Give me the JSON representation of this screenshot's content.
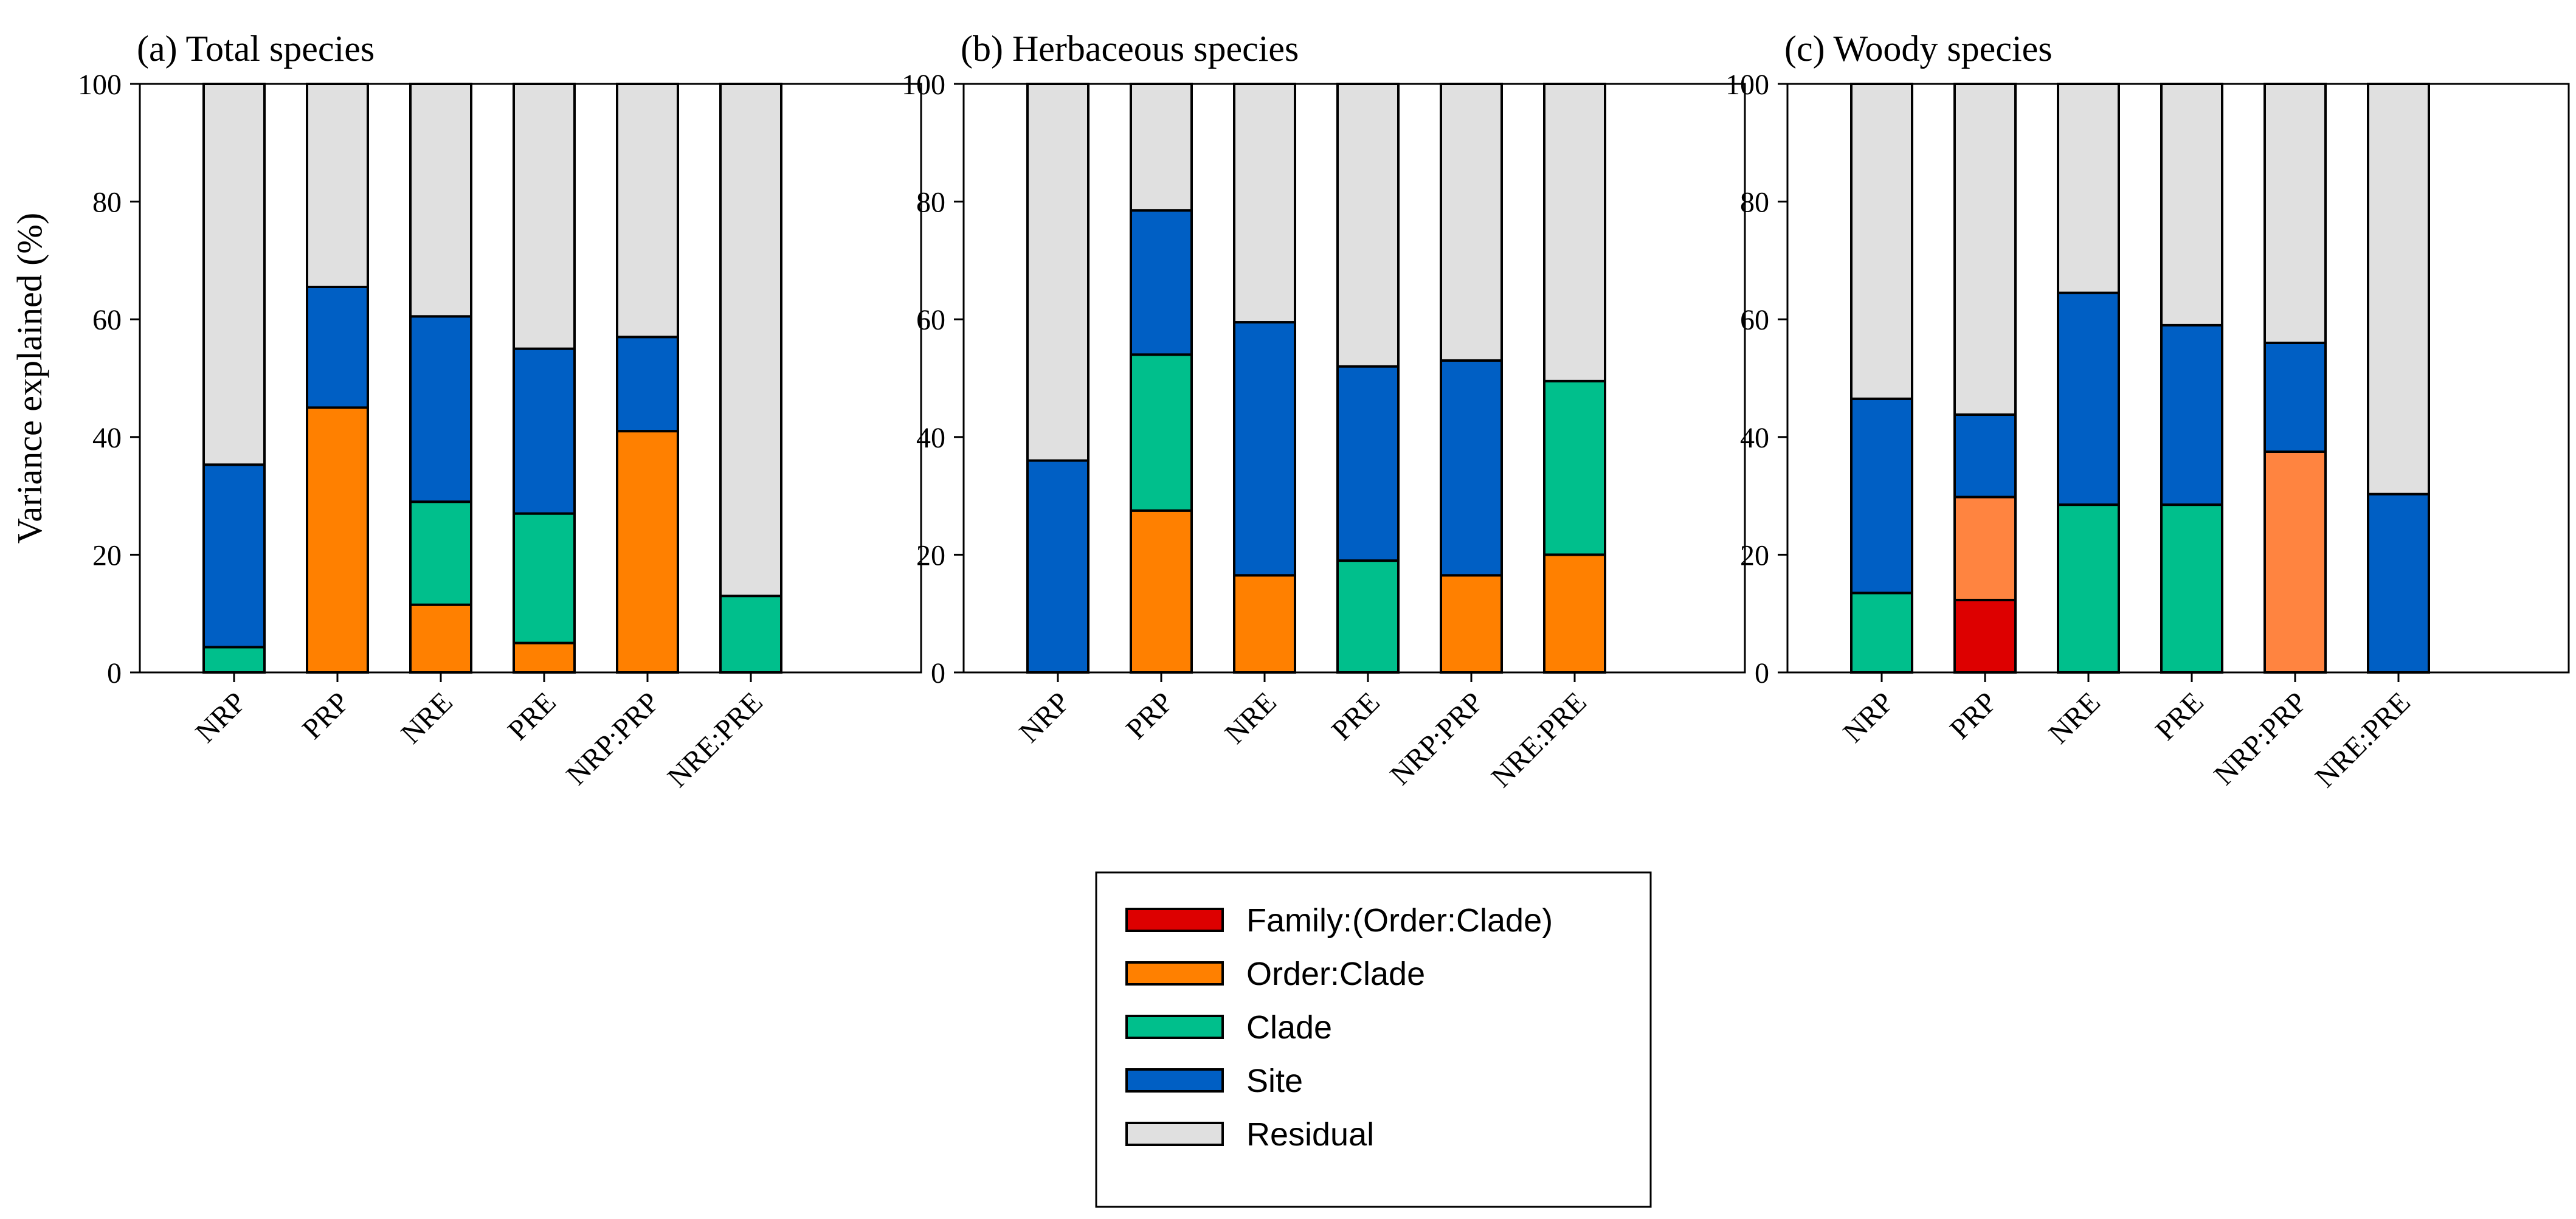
{
  "chart_data": [
    {
      "type": "bar",
      "stacked": true,
      "title": "(a) Total species",
      "xlabel": "",
      "ylabel": "Variance explained (%)",
      "ylim": [
        0,
        100
      ],
      "yticks": [
        0,
        20,
        40,
        60,
        80,
        100
      ],
      "categories": [
        "NRP",
        "PRP",
        "NRE",
        "PRE",
        "NRP:PRP",
        "NRE:PRE"
      ],
      "series": [
        {
          "name": "Family:(Order:Clade)",
          "values": [
            0,
            0,
            0,
            0,
            0,
            0
          ]
        },
        {
          "name": "Order:Clade",
          "values": [
            0,
            45,
            11.5,
            5,
            41,
            0
          ]
        },
        {
          "name": "Clade",
          "values": [
            4.3,
            0,
            17.5,
            22,
            0,
            13
          ]
        },
        {
          "name": "Site",
          "values": [
            31,
            20.5,
            31.5,
            28,
            16,
            0
          ]
        },
        {
          "name": "Residual",
          "values": [
            64.7,
            34.5,
            39.5,
            45,
            43,
            87
          ]
        }
      ]
    },
    {
      "type": "bar",
      "stacked": true,
      "title": "(b) Herbaceous species",
      "xlabel": "",
      "ylabel": "",
      "ylim": [
        0,
        100
      ],
      "yticks": [
        0,
        20,
        40,
        60,
        80,
        100
      ],
      "categories": [
        "NRP",
        "PRP",
        "NRE",
        "PRE",
        "NRP:PRP",
        "NRE:PRE"
      ],
      "series": [
        {
          "name": "Family:(Order:Clade)",
          "values": [
            0,
            0,
            0,
            0,
            0,
            0
          ]
        },
        {
          "name": "Order:Clade",
          "values": [
            0,
            27.5,
            16.5,
            0,
            16.5,
            20
          ]
        },
        {
          "name": "Clade",
          "values": [
            0,
            26.5,
            0,
            19,
            0,
            29.5
          ]
        },
        {
          "name": "Site",
          "values": [
            36,
            24.5,
            43,
            33,
            36.5,
            0
          ]
        },
        {
          "name": "Residual",
          "values": [
            64,
            21.5,
            40.5,
            48,
            47,
            50.5
          ]
        }
      ]
    },
    {
      "type": "bar",
      "stacked": true,
      "title": "(c) Woody species",
      "xlabel": "",
      "ylabel": "",
      "ylim": [
        0,
        100
      ],
      "yticks": [
        0,
        20,
        40,
        60,
        80,
        100
      ],
      "categories": [
        "NRP",
        "PRP",
        "NRE",
        "PRE",
        "NRP:PRP",
        "NRE:PRE"
      ],
      "series": [
        {
          "name": "Family:(Order:Clade)",
          "values": [
            0,
            12.3,
            0,
            0,
            0,
            0
          ]
        },
        {
          "name": "Order:Clade",
          "values": [
            0,
            17.5,
            0,
            0,
            37.5,
            0
          ]
        },
        {
          "name": "Clade",
          "values": [
            13.5,
            0,
            28.5,
            28.5,
            0,
            0
          ]
        },
        {
          "name": "Site",
          "values": [
            33,
            14,
            36,
            30.5,
            18.5,
            30.3
          ]
        },
        {
          "name": "Residual",
          "values": [
            53.5,
            56.2,
            35.5,
            41,
            44,
            69.7
          ]
        }
      ]
    }
  ],
  "colors": {
    "Family:(Order:Clade)": "#dd0000",
    "Order:Clade": "#ff8000",
    "Order:Clade (woody panel)": "#ff8440",
    "Clade": "#00bf8c",
    "Site": "#005fc4",
    "Residual": "#e0e0e0"
  },
  "legend": {
    "items": [
      "Family:(Order:Clade)",
      "Order:Clade",
      "Clade",
      "Site",
      "Residual"
    ]
  }
}
